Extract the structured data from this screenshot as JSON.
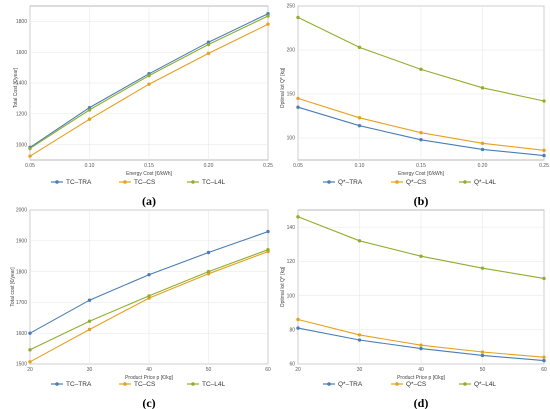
{
  "colors": {
    "TRA": "#4a7db5",
    "CS": "#e6a020",
    "L4L": "#8fae2e"
  },
  "chart_data": [
    {
      "panel": "(a)",
      "type": "line",
      "xlabel": "Energy Cost [€/kWh]",
      "ylabel": "Total Cost [€/year]",
      "x": [
        0.05,
        0.1,
        0.15,
        0.2,
        0.25
      ],
      "x_ticks": [
        "0.05",
        "0.10",
        "0.15",
        "0.20",
        "0.25"
      ],
      "xlim": [
        0.05,
        0.25
      ],
      "ylim": [
        900,
        1900
      ],
      "y_ticks": [
        1000,
        1200,
        1400,
        1600,
        1800
      ],
      "grid": true,
      "legend_position": "bottom",
      "series": [
        {
          "name": "TC–TRA",
          "color_key": "TRA",
          "values": [
            982,
            1240,
            1460,
            1665,
            1850
          ]
        },
        {
          "name": "TC–CS",
          "color_key": "CS",
          "values": [
            925,
            1165,
            1392,
            1592,
            1782
          ]
        },
        {
          "name": "TC–L4L",
          "color_key": "L4L",
          "values": [
            975,
            1225,
            1448,
            1650,
            1835
          ]
        }
      ]
    },
    {
      "panel": "(b)",
      "type": "line",
      "xlabel": "Energy Cost [€/kWh]",
      "ylabel": "Optimal lot Q* [kg]",
      "x": [
        0.05,
        0.1,
        0.15,
        0.2,
        0.25
      ],
      "x_ticks": [
        "0.05",
        "0.10",
        "0.15",
        "0.20",
        "0.25"
      ],
      "xlim": [
        0.05,
        0.25
      ],
      "ylim": [
        75,
        250
      ],
      "y_ticks": [
        100,
        150,
        200,
        250
      ],
      "grid": true,
      "legend_position": "bottom",
      "series": [
        {
          "name": "Q*–TRA",
          "color_key": "TRA",
          "values": [
            135,
            114,
            98,
            87,
            80
          ]
        },
        {
          "name": "Q*–CS",
          "color_key": "CS",
          "values": [
            145,
            123,
            106,
            94,
            86
          ]
        },
        {
          "name": "Q*–L4L",
          "color_key": "L4L",
          "values": [
            237,
            203,
            178,
            157,
            142
          ]
        }
      ]
    },
    {
      "panel": "(c)",
      "type": "line",
      "xlabel": "Product Price p [€/kg]",
      "ylabel": "Total cost [€/year]",
      "x": [
        20,
        30,
        40,
        50,
        60
      ],
      "x_ticks": [
        "20",
        "30",
        "40",
        "50",
        "60"
      ],
      "xlim": [
        20,
        60
      ],
      "ylim": [
        1500,
        2000
      ],
      "y_ticks": [
        1500,
        1600,
        1700,
        1800,
        1900,
        2000
      ],
      "grid": true,
      "legend_position": "bottom",
      "series": [
        {
          "name": "TC–TRA",
          "color_key": "TRA",
          "values": [
            1600,
            1707,
            1790,
            1862,
            1930
          ]
        },
        {
          "name": "TC–CS",
          "color_key": "CS",
          "values": [
            1507,
            1612,
            1714,
            1793,
            1865
          ]
        },
        {
          "name": "TC–L4L",
          "color_key": "L4L",
          "values": [
            1546,
            1639,
            1721,
            1800,
            1871
          ]
        }
      ]
    },
    {
      "panel": "(d)",
      "type": "line",
      "xlabel": "Product Price p [€/kg]",
      "ylabel": "Optimal lot Q* [kg]",
      "x": [
        20,
        30,
        40,
        50,
        60
      ],
      "x_ticks": [
        "20",
        "30",
        "40",
        "50",
        "60"
      ],
      "xlim": [
        20,
        60
      ],
      "ylim": [
        60,
        150
      ],
      "y_ticks": [
        60,
        80,
        100,
        120,
        140
      ],
      "grid": true,
      "legend_position": "bottom",
      "series": [
        {
          "name": "Q*–TRA",
          "color_key": "TRA",
          "values": [
            81,
            74,
            69,
            65,
            62
          ]
        },
        {
          "name": "Q*–CS",
          "color_key": "CS",
          "values": [
            86,
            77,
            71,
            67,
            64
          ]
        },
        {
          "name": "Q*–L4L",
          "color_key": "L4L",
          "values": [
            146,
            132,
            123,
            116,
            110
          ]
        }
      ]
    }
  ]
}
